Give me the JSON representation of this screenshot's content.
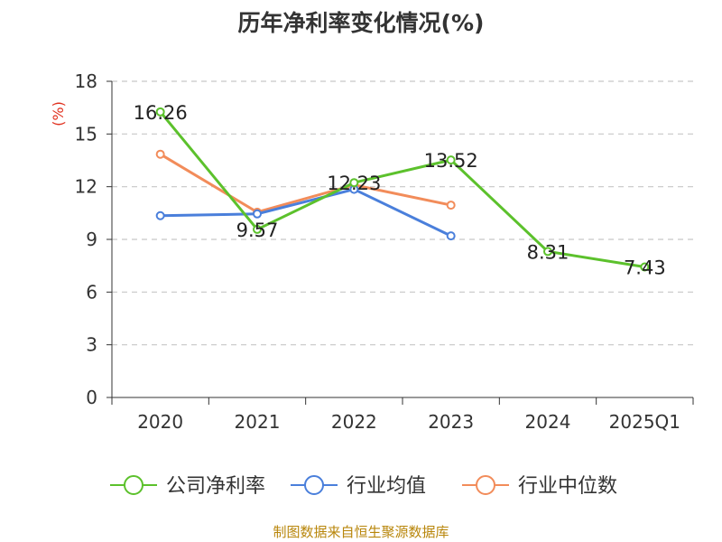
{
  "title": "历年净利率变化情况(%)",
  "source": "制图数据来自恒生聚源数据库",
  "chart_data": {
    "type": "line",
    "title": "历年净利率变化情况(%)",
    "ylabel": "(%)",
    "xlabel": "",
    "categories": [
      "2020",
      "2021",
      "2022",
      "2023",
      "2024",
      "2025Q1"
    ],
    "ylim": [
      0,
      18
    ],
    "yticks": [
      0,
      3,
      6,
      9,
      12,
      15,
      18
    ],
    "grid": "horizontal dashed",
    "legend_position": "bottom",
    "series": [
      {
        "name": "公司净利率",
        "color": "#5cc12c",
        "values": [
          16.26,
          9.57,
          12.23,
          13.52,
          8.31,
          7.43
        ],
        "labels": [
          "16.26",
          "9.57",
          "12.23",
          "13.52",
          "8.31",
          "7.43"
        ]
      },
      {
        "name": "行业均值",
        "color": "#4a7fdb",
        "values": [
          10.35,
          10.45,
          11.85,
          9.2,
          null,
          null
        ]
      },
      {
        "name": "行业中位数",
        "color": "#f28c5a",
        "values": [
          13.85,
          10.55,
          12.1,
          10.95,
          null,
          null
        ]
      }
    ]
  }
}
